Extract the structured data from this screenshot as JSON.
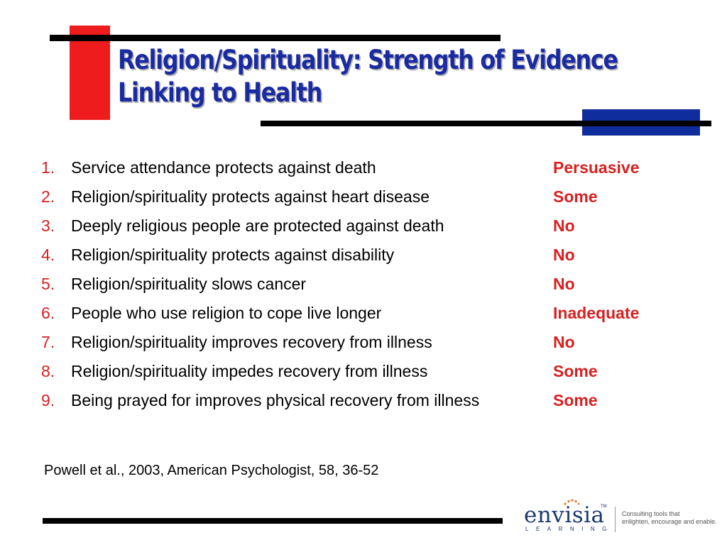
{
  "slide": {
    "title_line1": "Religion/Spirituality: Strength of Evidence",
    "title_line2": "Linking to Health",
    "items": [
      {
        "num": "1.",
        "text": "Service attendance protects against death",
        "evidence": "Persuasive"
      },
      {
        "num": "2.",
        "text": "Religion/spirituality protects against heart disease",
        "evidence": "Some"
      },
      {
        "num": "3.",
        "text": "Deeply religious people are protected against death",
        "evidence": "No"
      },
      {
        "num": "4.",
        "text": "Religion/spirituality protects against disability",
        "evidence": "No"
      },
      {
        "num": "5.",
        "text": "Religion/spirituality slows cancer",
        "evidence": "No"
      },
      {
        "num": "6.",
        "text": "People who use religion to cope live longer",
        "evidence": "Inadequate"
      },
      {
        "num": "7.",
        "text": "Religion/spirituality improves recovery from illness",
        "evidence": "No"
      },
      {
        "num": "8.",
        "text": "Religion/spirituality impedes recovery from illness",
        "evidence": "Some"
      },
      {
        "num": "9.",
        "text": "Being prayed for improves physical recovery from illness",
        "evidence": "Some"
      }
    ],
    "citation": "Powell et al., 2003,  American Psychologist, 58, 36-52"
  },
  "logo": {
    "name": "envisia",
    "tm": "TM",
    "subtitle": "LEARNING",
    "tagline_line1": "Consulting tools that",
    "tagline_line2": "enlighten, encourage and enable."
  },
  "colors": {
    "title": "#1a2aa0",
    "accent_red": "#ee1c1c",
    "accent_blue": "#0f2d9c",
    "evidence": "#d82020",
    "logo_dots": "#e8761e"
  }
}
